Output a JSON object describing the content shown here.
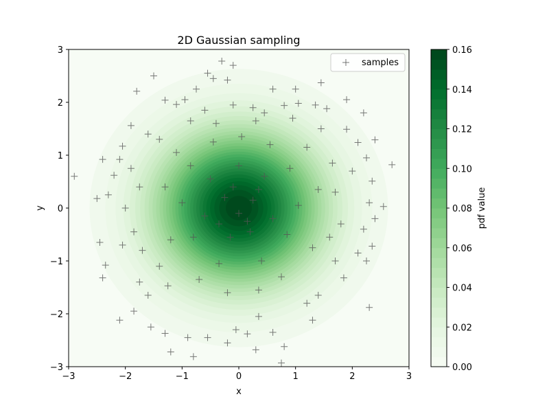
{
  "chart_data": {
    "type": "scatter",
    "title": "2D Gaussian sampling",
    "xlabel": "x",
    "ylabel": "y",
    "xlim": [
      -3,
      3
    ],
    "ylim": [
      -3,
      3
    ],
    "xticks": [
      "−3",
      "−2",
      "−1",
      "0",
      "1",
      "2",
      "3"
    ],
    "yticks": [
      "−3",
      "−2",
      "−1",
      "0",
      "1",
      "2",
      "3"
    ],
    "grid": false,
    "legend": {
      "placement": "top-right",
      "entries": [
        "samples"
      ]
    },
    "background": {
      "type": "filled-contour",
      "function": "bivariate standard normal pdf",
      "mean": [
        0,
        0
      ],
      "std": [
        1,
        1
      ],
      "colormap": "Greens"
    },
    "colorbar": {
      "label": "pdf value",
      "range": [
        0,
        0.16
      ],
      "ticks": [
        "0.00",
        "0.02",
        "0.04",
        "0.06",
        "0.08",
        "0.10",
        "0.12",
        "0.14",
        "0.16"
      ],
      "levels": 32
    },
    "series": [
      {
        "name": "samples",
        "marker": "+",
        "color": "#555555",
        "points": [
          [
            -0.3,
            2.78
          ],
          [
            -0.1,
            2.7
          ],
          [
            -0.55,
            2.55
          ],
          [
            -0.45,
            2.45
          ],
          [
            -0.2,
            2.42
          ],
          [
            -1.5,
            2.5
          ],
          [
            1.45,
            2.37
          ],
          [
            0.6,
            2.25
          ],
          [
            -0.75,
            2.25
          ],
          [
            -1.8,
            2.21
          ],
          [
            1.0,
            2.25
          ],
          [
            -0.95,
            2.05
          ],
          [
            1.9,
            2.05
          ],
          [
            -1.3,
            2.04
          ],
          [
            -1.1,
            1.96
          ],
          [
            1.05,
            1.98
          ],
          [
            0.8,
            1.94
          ],
          [
            1.35,
            1.95
          ],
          [
            -0.1,
            1.95
          ],
          [
            0.25,
            1.9
          ],
          [
            1.55,
            1.88
          ],
          [
            -0.6,
            1.85
          ],
          [
            0.45,
            1.8
          ],
          [
            -1.9,
            1.56
          ],
          [
            -1.6,
            1.4
          ],
          [
            2.2,
            1.8
          ],
          [
            2.4,
            1.29
          ],
          [
            2.1,
            1.24
          ],
          [
            -2.05,
            1.17
          ],
          [
            1.9,
            1.49
          ],
          [
            -2.1,
            0.92
          ],
          [
            2.25,
            0.95
          ],
          [
            -2.4,
            0.92
          ],
          [
            -2.2,
            0.62
          ],
          [
            -2.9,
            0.6
          ],
          [
            2.7,
            0.82
          ],
          [
            -2.3,
            0.25
          ],
          [
            2.0,
            0.7
          ],
          [
            2.35,
            0.51
          ],
          [
            -2.5,
            0.18
          ],
          [
            2.3,
            0.1
          ],
          [
            2.55,
            0.03
          ],
          [
            -2.0,
            0.0
          ],
          [
            2.4,
            -0.2
          ],
          [
            -2.45,
            -0.65
          ],
          [
            -2.05,
            -0.7
          ],
          [
            2.2,
            -0.4
          ],
          [
            2.35,
            -0.72
          ],
          [
            -2.35,
            -1.08
          ],
          [
            2.1,
            -0.85
          ],
          [
            -1.75,
            -1.4
          ],
          [
            2.25,
            -1.0
          ],
          [
            -2.4,
            -1.32
          ],
          [
            1.85,
            -1.32
          ],
          [
            -1.25,
            -1.47
          ],
          [
            -1.85,
            -1.95
          ],
          [
            1.4,
            -1.65
          ],
          [
            2.3,
            -1.88
          ],
          [
            -1.55,
            -2.25
          ],
          [
            1.3,
            -2.12
          ],
          [
            -1.3,
            -2.37
          ],
          [
            0.6,
            -2.35
          ],
          [
            -0.55,
            -2.45
          ],
          [
            -0.9,
            -2.45
          ],
          [
            -2.1,
            -2.12
          ],
          [
            0.8,
            -2.62
          ],
          [
            -0.2,
            -2.55
          ],
          [
            0.3,
            -2.68
          ],
          [
            -1.2,
            -2.72
          ],
          [
            -0.8,
            -2.81
          ],
          [
            0.75,
            -2.93
          ],
          [
            0.15,
            -2.38
          ],
          [
            -0.05,
            -2.3
          ],
          [
            0.35,
            -2.05
          ],
          [
            1.2,
            -1.8
          ],
          [
            -1.6,
            -1.65
          ],
          [
            -1.4,
            -1.1
          ],
          [
            -1.7,
            -0.8
          ],
          [
            1.7,
            -1.0
          ],
          [
            1.6,
            -0.55
          ],
          [
            -1.85,
            -0.45
          ],
          [
            1.8,
            -0.3
          ],
          [
            1.7,
            0.3
          ],
          [
            -1.75,
            0.4
          ],
          [
            -1.9,
            0.75
          ],
          [
            1.65,
            0.85
          ],
          [
            -1.4,
            1.3
          ],
          [
            1.45,
            1.5
          ],
          [
            -0.85,
            1.65
          ],
          [
            0.95,
            1.7
          ],
          [
            -0.4,
            1.6
          ],
          [
            0.3,
            1.65
          ],
          [
            -1.1,
            1.05
          ],
          [
            1.2,
            1.15
          ],
          [
            -1.3,
            0.4
          ],
          [
            1.4,
            0.35
          ],
          [
            -1.2,
            -0.6
          ],
          [
            1.3,
            -0.75
          ],
          [
            -0.7,
            -1.35
          ],
          [
            0.75,
            -1.3
          ],
          [
            -0.2,
            -1.6
          ],
          [
            0.35,
            -1.55
          ],
          [
            0.05,
            1.35
          ],
          [
            -0.45,
            1.25
          ],
          [
            0.55,
            1.2
          ],
          [
            -0.85,
            0.8
          ],
          [
            0.9,
            0.75
          ],
          [
            -1.0,
            0.1
          ],
          [
            1.05,
            0.05
          ],
          [
            -0.8,
            -0.55
          ],
          [
            0.85,
            -0.5
          ],
          [
            -0.35,
            -1.05
          ],
          [
            0.4,
            -1.0
          ],
          [
            -0.5,
            0.55
          ],
          [
            0.45,
            0.6
          ],
          [
            -0.6,
            -0.15
          ],
          [
            0.6,
            -0.2
          ],
          [
            -0.15,
            -0.55
          ],
          [
            0.2,
            -0.45
          ],
          [
            0.0,
            0.8
          ],
          [
            -0.25,
            0.2
          ],
          [
            0.25,
            0.15
          ],
          [
            0.0,
            -0.1
          ],
          [
            -0.1,
            0.4
          ],
          [
            0.15,
            -0.25
          ],
          [
            -0.35,
            -0.3
          ],
          [
            0.35,
            0.35
          ]
        ]
      }
    ]
  }
}
